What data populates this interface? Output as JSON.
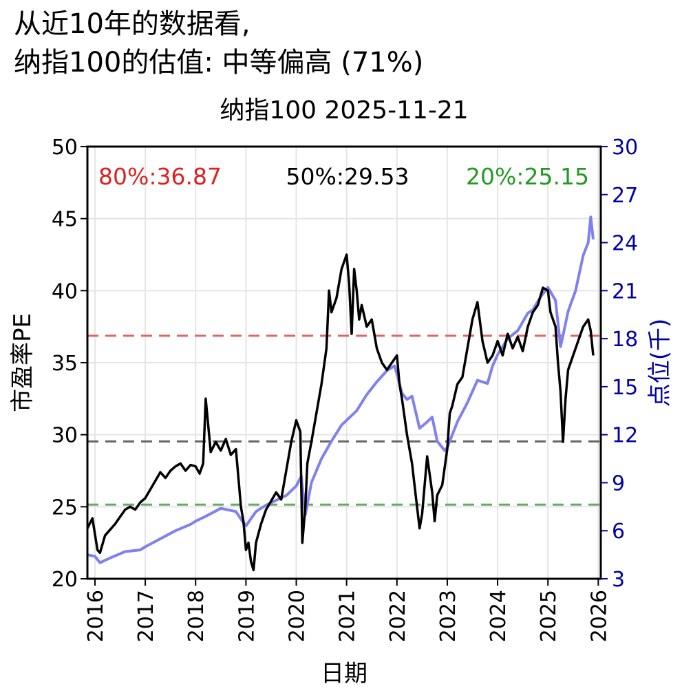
{
  "headline": {
    "line1": "从近10年的数据看,",
    "line2": "纳指100的估值: 中等偏高 (71%)"
  },
  "chart_data": {
    "type": "line",
    "title": "纳指100 2025-11-21",
    "xlabel": "日期",
    "ylabel_left": "市盈率PE",
    "ylabel_right": "点位(千)",
    "xlim": [
      2015.85,
      2026.05
    ],
    "ylim_left": [
      20,
      50
    ],
    "ylim_right": [
      3,
      30
    ],
    "xticks": [
      "2016",
      "2017",
      "2018",
      "2019",
      "2020",
      "2021",
      "2022",
      "2023",
      "2024",
      "2025",
      "2026"
    ],
    "yticks_left": [
      "20",
      "25",
      "30",
      "35",
      "40",
      "45",
      "50"
    ],
    "yticks_right": [
      "3",
      "6",
      "9",
      "12",
      "15",
      "18",
      "21",
      "24",
      "27",
      "30"
    ],
    "grid": true,
    "colors": {
      "pe": "#000000",
      "index": "#8080f0",
      "p80": "#e06666",
      "p50": "#666666",
      "p20": "#66aa66",
      "right_axis": "#0000aa",
      "p80_text": "#dd2222",
      "p50_text": "#000000",
      "p20_text": "#229922"
    },
    "percentiles": [
      {
        "name": "80%",
        "label": "80%:36.87",
        "value": 36.87
      },
      {
        "name": "50%",
        "label": "50%:29.53",
        "value": 29.53
      },
      {
        "name": "20%",
        "label": "20%:25.15",
        "value": 25.15
      }
    ],
    "series": [
      {
        "axis": "left",
        "x": [
          2015.85,
          2015.95,
          2016.05,
          2016.1,
          2016.2,
          2016.3,
          2016.4,
          2016.5,
          2016.6,
          2016.7,
          2016.8,
          2016.9,
          2017.0,
          2017.1,
          2017.2,
          2017.3,
          2017.4,
          2017.5,
          2017.6,
          2017.7,
          2017.8,
          2017.9,
          2018.0,
          2018.08,
          2018.15,
          2018.2,
          2018.3,
          2018.4,
          2018.5,
          2018.6,
          2018.7,
          2018.8,
          2018.9,
          2018.95,
          2019.0,
          2019.05,
          2019.1,
          2019.15,
          2019.2,
          2019.3,
          2019.4,
          2019.5,
          2019.6,
          2019.7,
          2019.8,
          2019.9,
          2020.0,
          2020.08,
          2020.12,
          2020.18,
          2020.22,
          2020.3,
          2020.4,
          2020.5,
          2020.6,
          2020.65,
          2020.7,
          2020.8,
          2020.9,
          2021.0,
          2021.05,
          2021.1,
          2021.15,
          2021.2,
          2021.25,
          2021.3,
          2021.4,
          2021.5,
          2021.6,
          2021.7,
          2021.8,
          2021.9,
          2022.0,
          2022.05,
          2022.1,
          2022.2,
          2022.3,
          2022.4,
          2022.45,
          2022.5,
          2022.6,
          2022.7,
          2022.75,
          2022.8,
          2022.9,
          2023.0,
          2023.05,
          2023.1,
          2023.2,
          2023.3,
          2023.4,
          2023.5,
          2023.6,
          2023.7,
          2023.8,
          2023.9,
          2024.0,
          2024.1,
          2024.2,
          2024.3,
          2024.4,
          2024.5,
          2024.6,
          2024.7,
          2024.8,
          2024.9,
          2025.0,
          2025.05,
          2025.1,
          2025.15,
          2025.2,
          2025.25,
          2025.3,
          2025.35,
          2025.4,
          2025.5,
          2025.6,
          2025.7,
          2025.8,
          2025.85,
          2025.9
        ],
        "values": [
          23.5,
          24.2,
          22.0,
          21.8,
          23.0,
          23.4,
          23.8,
          24.3,
          24.8,
          25.0,
          24.8,
          25.3,
          25.6,
          26.2,
          26.8,
          27.4,
          27.0,
          27.5,
          27.8,
          28.0,
          27.5,
          27.9,
          27.8,
          27.3,
          28.0,
          32.5,
          28.8,
          29.5,
          28.9,
          29.7,
          28.6,
          29.0,
          25.0,
          24.0,
          22.0,
          22.5,
          21.2,
          20.6,
          22.5,
          23.8,
          24.8,
          25.4,
          26.0,
          25.5,
          27.5,
          29.5,
          31.0,
          30.2,
          22.5,
          25.0,
          28.0,
          29.5,
          31.5,
          33.5,
          36.0,
          40.0,
          38.5,
          39.5,
          41.5,
          42.5,
          40.5,
          37.0,
          41.5,
          40.0,
          38.0,
          39.0,
          37.5,
          38.0,
          36.0,
          35.0,
          34.5,
          35.0,
          35.5,
          33.5,
          32.5,
          30.0,
          28.0,
          25.0,
          23.5,
          24.5,
          28.5,
          26.0,
          24.0,
          25.8,
          26.5,
          29.0,
          31.5,
          32.0,
          33.5,
          34.0,
          36.0,
          38.0,
          39.2,
          36.5,
          35.0,
          35.5,
          36.5,
          35.5,
          37.0,
          36.0,
          36.8,
          35.8,
          37.5,
          38.5,
          39.0,
          40.2,
          40.0,
          38.5,
          38.0,
          37.5,
          35.0,
          33.0,
          29.5,
          32.5,
          34.5,
          35.5,
          36.5,
          37.5,
          38.0,
          37.2,
          35.5
        ]
      },
      {
        "axis": "right",
        "x": [
          2015.85,
          2016.0,
          2016.1,
          2016.3,
          2016.6,
          2016.9,
          2017.0,
          2017.3,
          2017.6,
          2017.9,
          2018.0,
          2018.2,
          2018.5,
          2018.8,
          2018.95,
          2019.0,
          2019.2,
          2019.4,
          2019.6,
          2019.8,
          2020.0,
          2020.1,
          2020.18,
          2020.3,
          2020.5,
          2020.7,
          2020.9,
          2021.0,
          2021.2,
          2021.4,
          2021.6,
          2021.8,
          2021.95,
          2022.0,
          2022.1,
          2022.2,
          2022.3,
          2022.45,
          2022.6,
          2022.7,
          2022.8,
          2022.95,
          2023.0,
          2023.2,
          2023.4,
          2023.6,
          2023.8,
          2023.9,
          2024.0,
          2024.2,
          2024.4,
          2024.6,
          2024.7,
          2024.85,
          2025.0,
          2025.15,
          2025.25,
          2025.3,
          2025.4,
          2025.55,
          2025.7,
          2025.8,
          2025.85,
          2025.9
        ],
        "values": [
          4.5,
          4.4,
          4.0,
          4.3,
          4.7,
          4.8,
          5.0,
          5.5,
          6.0,
          6.4,
          6.6,
          6.9,
          7.4,
          7.2,
          6.5,
          6.3,
          7.2,
          7.6,
          7.9,
          8.2,
          8.8,
          9.4,
          7.0,
          9.0,
          10.5,
          11.6,
          12.6,
          12.9,
          13.5,
          14.5,
          15.3,
          16.0,
          16.3,
          15.8,
          14.6,
          14.2,
          14.4,
          12.4,
          12.8,
          13.1,
          11.6,
          11.0,
          11.2,
          12.8,
          14.0,
          15.4,
          15.2,
          16.3,
          17.0,
          18.0,
          18.5,
          19.6,
          19.8,
          20.6,
          21.2,
          20.4,
          17.5,
          18.2,
          19.7,
          21.0,
          23.2,
          24.0,
          25.6,
          24.2
        ]
      }
    ]
  }
}
